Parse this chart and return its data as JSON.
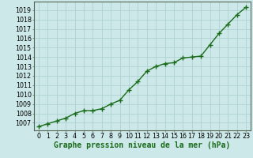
{
  "x": [
    0,
    1,
    2,
    3,
    4,
    5,
    6,
    7,
    8,
    9,
    10,
    11,
    12,
    13,
    14,
    15,
    16,
    17,
    18,
    19,
    20,
    21,
    22,
    23
  ],
  "y": [
    1006.6,
    1006.9,
    1007.2,
    1007.5,
    1008.0,
    1008.3,
    1008.3,
    1008.5,
    1009.0,
    1009.4,
    1010.5,
    1011.4,
    1012.5,
    1013.0,
    1013.3,
    1013.4,
    1013.9,
    1014.0,
    1014.1,
    1015.3,
    1016.5,
    1017.5,
    1018.5,
    1019.3
  ],
  "line_color": "#1a6b1a",
  "marker": "+",
  "marker_size": 4,
  "bg_color": "#cce8e8",
  "grid_color": "#aacece",
  "ylabel_ticks": [
    1007,
    1008,
    1009,
    1010,
    1011,
    1012,
    1013,
    1014,
    1015,
    1016,
    1017,
    1018,
    1019
  ],
  "ylim": [
    1006.2,
    1019.9
  ],
  "xlim": [
    -0.5,
    23.5
  ],
  "xlabel": "Graphe pression niveau de la mer (hPa)",
  "xlabel_fontsize": 7,
  "tick_fontsize": 5.8,
  "line_width": 1.0
}
